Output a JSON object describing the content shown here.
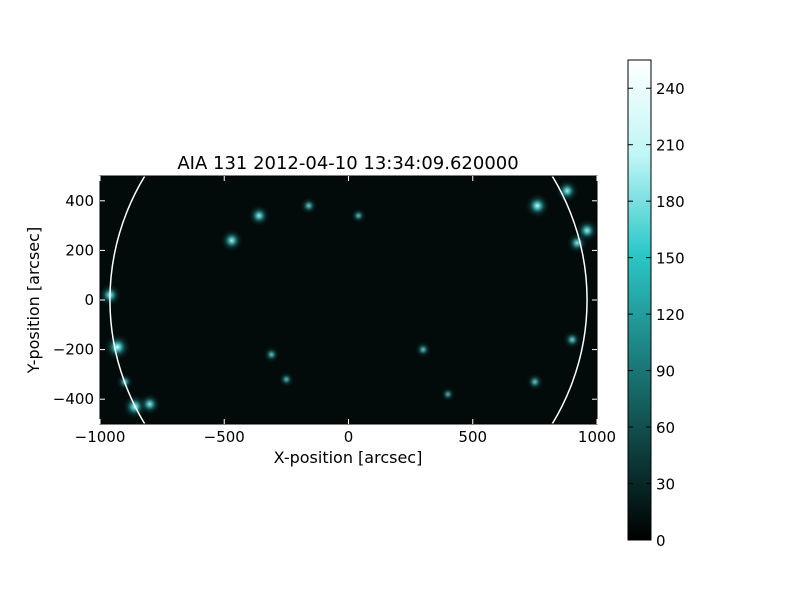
{
  "chart_data": [
    {
      "type": "heatmap",
      "title": "AIA 131 2012-04-10 13:34:09.620000",
      "xlabel": "X-position [arcsec]",
      "ylabel": "Y-position [arcsec]",
      "xlim": [
        -1000,
        1000
      ],
      "ylim": [
        -500,
        500
      ],
      "xticks": [
        -1000,
        -500,
        0,
        500,
        1000
      ],
      "xtick_labels": [
        "−1000",
        "−500",
        "0",
        "500",
        "1000"
      ],
      "yticks": [
        400,
        200,
        0,
        -200,
        -400
      ],
      "ytick_labels": [
        "400",
        "200",
        "0",
        "−200",
        "−400"
      ],
      "grid": false,
      "limb_circle": {
        "center": [
          0,
          0
        ],
        "radius": 960,
        "color": "#ffffff"
      },
      "bright_regions": [
        {
          "x": -960,
          "y": 20,
          "intensity": 0.8
        },
        {
          "x": -930,
          "y": -190,
          "intensity": 1.0
        },
        {
          "x": -860,
          "y": -430,
          "intensity": 0.9
        },
        {
          "x": -800,
          "y": -420,
          "intensity": 0.75
        },
        {
          "x": -900,
          "y": -330,
          "intensity": 0.5
        },
        {
          "x": -470,
          "y": 240,
          "intensity": 0.8
        },
        {
          "x": -360,
          "y": 340,
          "intensity": 0.75
        },
        {
          "x": -160,
          "y": 380,
          "intensity": 0.5
        },
        {
          "x": 40,
          "y": 340,
          "intensity": 0.4
        },
        {
          "x": 760,
          "y": 380,
          "intensity": 0.9
        },
        {
          "x": 880,
          "y": 440,
          "intensity": 0.8
        },
        {
          "x": 920,
          "y": 230,
          "intensity": 0.7
        },
        {
          "x": 960,
          "y": 280,
          "intensity": 0.8
        },
        {
          "x": 900,
          "y": -160,
          "intensity": 0.55
        },
        {
          "x": 750,
          "y": -330,
          "intensity": 0.5
        },
        {
          "x": 300,
          "y": -200,
          "intensity": 0.45
        },
        {
          "x": -310,
          "y": -220,
          "intensity": 0.45
        },
        {
          "x": -250,
          "y": -320,
          "intensity": 0.4
        },
        {
          "x": 400,
          "y": -380,
          "intensity": 0.35
        }
      ]
    },
    {
      "type": "colorbar",
      "range": [
        0,
        255
      ],
      "ticks": [
        0,
        30,
        60,
        90,
        120,
        150,
        180,
        210,
        240
      ],
      "tick_labels": [
        "0",
        "30",
        "60",
        "90",
        "120",
        "150",
        "180",
        "210",
        "240"
      ],
      "colormap": [
        "#000000",
        "#0f4343",
        "#1e8585",
        "#2dc8c8",
        "#bff5f5",
        "#ffffff"
      ]
    }
  ]
}
